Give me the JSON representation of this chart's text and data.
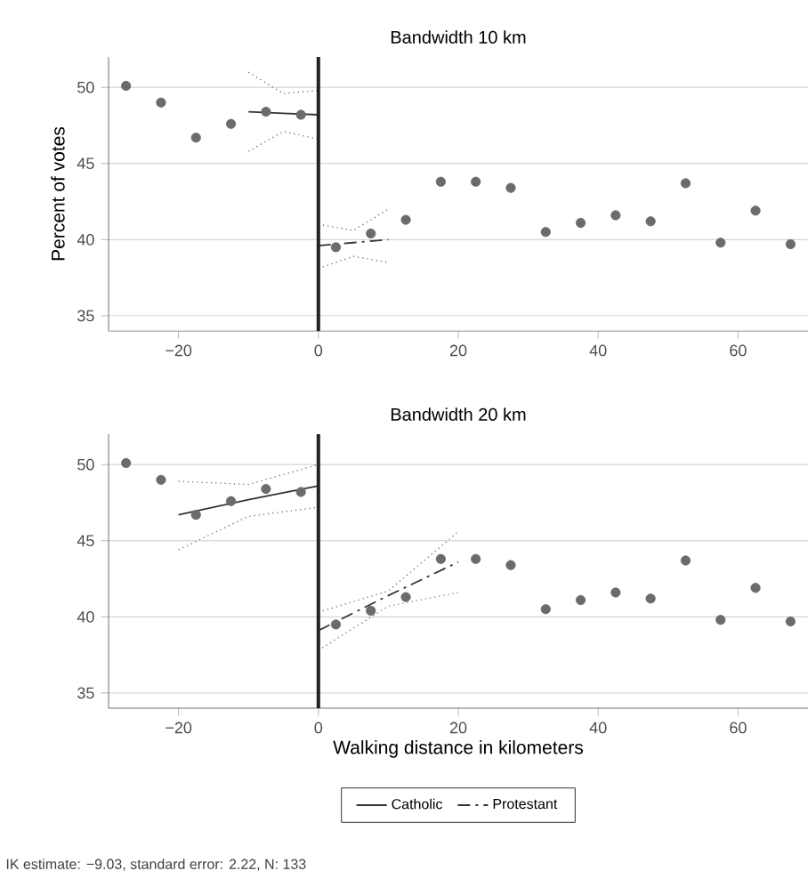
{
  "chart_data": [
    {
      "type": "scatter",
      "title": "Bandwidth 10 km",
      "ylabel": "Percent of votes",
      "x": [
        -27.5,
        -22.5,
        -17.5,
        -12.5,
        -7.5,
        -2.5,
        2.5,
        7.5,
        12.5,
        17.5,
        22.5,
        27.5,
        32.5,
        37.5,
        42.5,
        47.5,
        52.5,
        57.5,
        62.5,
        67.5
      ],
      "xlim": [
        -30,
        70
      ],
      "ylim": [
        34,
        52
      ],
      "xticks": [
        {
          "value": -20,
          "label": "−20"
        },
        0,
        20,
        40,
        60
      ],
      "yticks": [
        35,
        40,
        45,
        50
      ],
      "grid": "y",
      "ref_lines": [
        {
          "axis": "x",
          "value": 0,
          "color": "#222222"
        }
      ],
      "series": [
        {
          "color": "#6b6b6b",
          "marker": "circle",
          "values": [
            50.1,
            49.0,
            46.7,
            47.6,
            48.4,
            48.2,
            39.5,
            40.4,
            41.3,
            43.8,
            43.8,
            43.4,
            40.5,
            41.1,
            41.6,
            41.2,
            43.7,
            39.8,
            41.9,
            39.7
          ]
        },
        {
          "type": "line",
          "color": "#333333",
          "line_style": "solid",
          "x": [
            -10,
            -5,
            0
          ],
          "values": [
            48.4,
            48.3,
            48.2
          ]
        },
        {
          "type": "line",
          "color": "#555555",
          "line_style": "dotted",
          "marker": "none",
          "x": [
            -10,
            -5,
            0
          ],
          "values": [
            51.0,
            49.6,
            49.8
          ]
        },
        {
          "type": "line",
          "color": "#555555",
          "line_style": "dotted",
          "marker": "none",
          "x": [
            -10,
            -5,
            0
          ],
          "values": [
            45.8,
            47.1,
            46.6
          ]
        },
        {
          "type": "line",
          "color": "#333333",
          "line_style": "dashed",
          "marker": "none",
          "x": [
            0,
            5,
            10
          ],
          "values": [
            39.6,
            39.8,
            40.0
          ]
        },
        {
          "type": "line",
          "color": "#555555",
          "line_style": "dotted",
          "marker": "none",
          "x": [
            0,
            5,
            10
          ],
          "values": [
            41.0,
            40.6,
            42.0
          ]
        },
        {
          "type": "line",
          "color": "#555555",
          "line_style": "dotted",
          "marker": "none",
          "x": [
            0,
            5,
            10
          ],
          "values": [
            38.1,
            38.9,
            38.5
          ]
        }
      ]
    },
    {
      "type": "scatter",
      "title": "Bandwidth 20 km",
      "xlabel": "Walking distance in kilometers",
      "x": [
        -27.5,
        -22.5,
        -17.5,
        -12.5,
        -7.5,
        -2.5,
        2.5,
        7.5,
        12.5,
        17.5,
        22.5,
        27.5,
        32.5,
        37.5,
        42.5,
        47.5,
        52.5,
        57.5,
        62.5,
        67.5
      ],
      "xlim": [
        -30,
        70
      ],
      "ylim": [
        34,
        52
      ],
      "xticks": [
        {
          "value": -20,
          "label": "−20"
        },
        0,
        20,
        40,
        60
      ],
      "yticks": [
        35,
        40,
        45,
        50
      ],
      "grid": "y",
      "legend": "bottom",
      "ref_lines": [
        {
          "axis": "x",
          "value": 0,
          "color": "#222222"
        }
      ],
      "annotations": [
        "IK estimate: −9.03, standard error: 2.22, N: 133"
      ],
      "series": [
        {
          "color": "#6b6b6b",
          "marker": "circle",
          "values": [
            50.1,
            49.0,
            46.7,
            47.6,
            48.4,
            48.2,
            39.5,
            40.4,
            41.3,
            43.8,
            43.8,
            43.4,
            40.5,
            41.1,
            41.6,
            41.2,
            43.7,
            39.8,
            41.9,
            39.7
          ]
        },
        {
          "type": "line",
          "name": "Catholic",
          "color": "#333333",
          "line_style": "solid",
          "x": [
            -20,
            -10,
            0
          ],
          "values": [
            46.7,
            47.7,
            48.6
          ]
        },
        {
          "type": "line",
          "color": "#555555",
          "line_style": "dotted",
          "marker": "none",
          "x": [
            -20,
            -10,
            0
          ],
          "values": [
            48.9,
            48.7,
            50.0
          ]
        },
        {
          "type": "line",
          "color": "#555555",
          "line_style": "dotted",
          "marker": "none",
          "x": [
            -20,
            -10,
            0
          ],
          "values": [
            44.4,
            46.6,
            47.2
          ]
        },
        {
          "type": "line",
          "name": "Protestant",
          "color": "#333333",
          "line_style": "dashed",
          "marker": "none",
          "x": [
            0,
            10,
            20
          ],
          "values": [
            39.1,
            41.4,
            43.6
          ]
        },
        {
          "type": "line",
          "color": "#555555",
          "line_style": "dotted",
          "marker": "none",
          "x": [
            0,
            10,
            20
          ],
          "values": [
            40.3,
            41.7,
            45.6
          ]
        },
        {
          "type": "line",
          "color": "#555555",
          "line_style": "dotted",
          "marker": "none",
          "x": [
            0,
            10,
            20
          ],
          "values": [
            37.8,
            40.7,
            41.6
          ]
        }
      ]
    }
  ]
}
